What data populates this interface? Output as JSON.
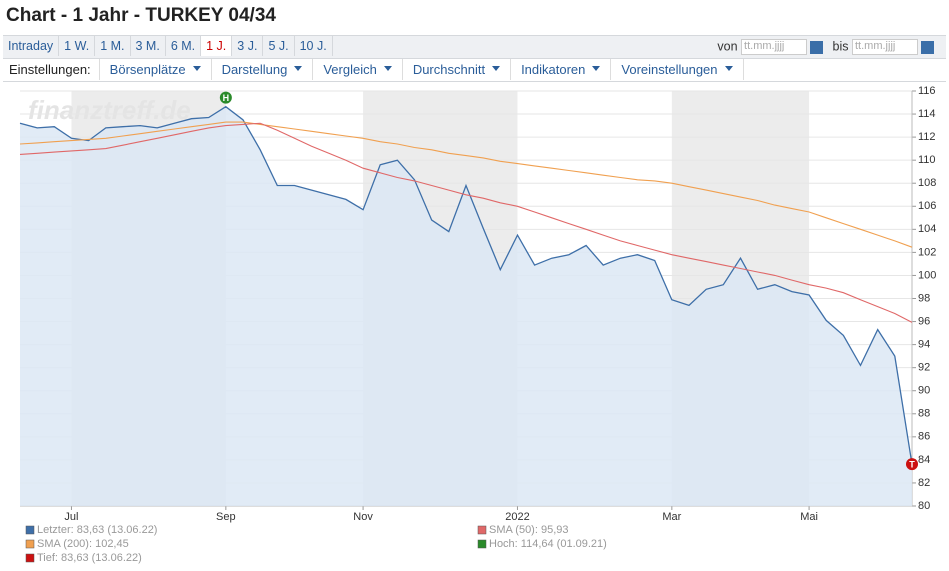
{
  "header": {
    "title": "Chart - 1 Jahr - TURKEY 04/34"
  },
  "tabs": {
    "items": [
      "Intraday",
      "1 W.",
      "1 M.",
      "3 M.",
      "6 M.",
      "1 J.",
      "3 J.",
      "5 J.",
      "10 J."
    ],
    "active": 5
  },
  "range": {
    "from_label": "von",
    "to_label": "bis",
    "from_placeholder": "tt.mm.jjjj",
    "to_placeholder": "tt.mm.jjjj"
  },
  "settings": {
    "label": "Einstellungen:",
    "menus": [
      "Börsenplätze",
      "Darstellung",
      "Vergleich",
      "Durchschnitt",
      "Indikatoren",
      "Voreinstellungen"
    ]
  },
  "chart_data": {
    "type": "line",
    "watermark": "finanztreff.de",
    "categories": [
      null,
      null,
      null,
      "Jul",
      null,
      null,
      null,
      null,
      null,
      null,
      null,
      null,
      "Sep",
      null,
      null,
      null,
      null,
      null,
      null,
      null,
      "Nov",
      null,
      null,
      null,
      null,
      null,
      null,
      null,
      null,
      "2022",
      null,
      null,
      null,
      null,
      null,
      null,
      null,
      null,
      "Mar",
      null,
      null,
      null,
      null,
      null,
      null,
      null,
      "Mai",
      null,
      null,
      null,
      null,
      null,
      null
    ],
    "series": [
      {
        "name": "Letzter: 83,63 (13.06.22)",
        "color": "#3e6fa8",
        "values": [
          113.2,
          112.8,
          112.9,
          111.9,
          111.7,
          112.8,
          112.9,
          113.0,
          112.8,
          113.2,
          113.6,
          113.7,
          114.64,
          113.5,
          110.9,
          107.8,
          107.8,
          107.4,
          107.0,
          106.6,
          105.7,
          109.6,
          110.0,
          108.3,
          104.8,
          103.8,
          107.8,
          104.1,
          100.5,
          103.5,
          100.9,
          101.5,
          101.8,
          102.6,
          100.9,
          101.5,
          101.8,
          101.3,
          97.9,
          97.4,
          98.8,
          99.2,
          101.5,
          98.8,
          99.2,
          98.6,
          98.3,
          96.1,
          94.8,
          92.2,
          95.3,
          93.0,
          83.63
        ]
      },
      {
        "name": "SMA (200): 102,45",
        "color": "#f0a050",
        "values": [
          111.4,
          111.5,
          111.6,
          111.7,
          111.8,
          111.9,
          112.1,
          112.3,
          112.5,
          112.7,
          112.9,
          113.1,
          113.3,
          113.3,
          113.1,
          112.9,
          112.7,
          112.5,
          112.3,
          112.1,
          111.9,
          111.6,
          111.4,
          111.1,
          110.9,
          110.6,
          110.4,
          110.2,
          109.9,
          109.7,
          109.5,
          109.3,
          109.1,
          108.9,
          108.7,
          108.5,
          108.3,
          108.2,
          108.0,
          107.7,
          107.4,
          107.1,
          106.8,
          106.5,
          106.1,
          105.8,
          105.5,
          105.0,
          104.5,
          104.0,
          103.5,
          103.0,
          102.45
        ]
      },
      {
        "name": "SMA (50): 95,93",
        "color": "#e06868",
        "values": [
          110.5,
          110.6,
          110.7,
          110.8,
          110.9,
          111.0,
          111.3,
          111.6,
          111.9,
          112.2,
          112.5,
          112.8,
          113.0,
          113.1,
          113.2,
          112.6,
          111.9,
          111.2,
          110.6,
          110.0,
          109.3,
          108.9,
          108.5,
          108.2,
          107.8,
          107.4,
          107.0,
          106.7,
          106.3,
          106.0,
          105.5,
          105.0,
          104.5,
          104.0,
          103.5,
          103.0,
          102.6,
          102.2,
          101.8,
          101.5,
          101.2,
          100.9,
          100.6,
          100.3,
          100.0,
          99.6,
          99.2,
          98.9,
          98.5,
          97.9,
          97.3,
          96.7,
          95.93
        ]
      }
    ],
    "markers": [
      {
        "symbol": "H",
        "name": "Hoch: 114,64 (01.09.21)",
        "color": "#2a8a2a"
      },
      {
        "symbol": "T",
        "name": "Tief: 83,63 (13.06.22)",
        "color": "#cc1111"
      }
    ],
    "ylim": [
      80,
      116
    ],
    "yticks": [
      80,
      82,
      84,
      86,
      88,
      90,
      92,
      94,
      96,
      98,
      100,
      102,
      104,
      106,
      108,
      110,
      112,
      114,
      116
    ],
    "grid": true
  }
}
